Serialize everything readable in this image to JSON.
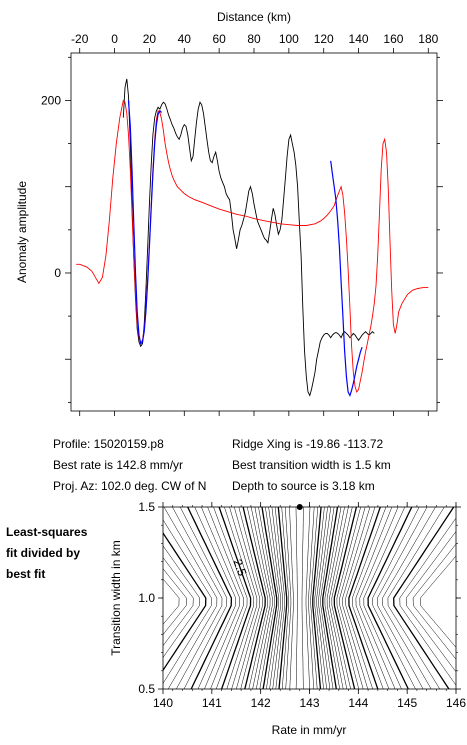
{
  "info": {
    "profile": "Profile: 15020159.p8",
    "best_rate": "Best rate is 142.8 mm/yr",
    "proj_az": "Proj. Az: 102.0 deg. CW of N",
    "ridge_xing": "Ridge Xing is -19.86 -113.72",
    "best_width": "Best transition width is 1.5 km",
    "depth": "Depth to source is   3.18 km"
  },
  "side_label": [
    "Least-squares",
    "fit divided by",
    "best fit"
  ],
  "colors": {
    "observed": "#000000",
    "model": "#ff0000",
    "fit": "#0000ff",
    "contour": "#000000"
  },
  "chart_data": [
    {
      "type": "line",
      "title": "",
      "xlabel": "Distance (km)",
      "ylabel": "Anomaly amplitude",
      "xlim": [
        -25,
        185
      ],
      "ylim": [
        -160,
        255
      ],
      "xticks": [
        -20,
        0,
        20,
        40,
        60,
        80,
        100,
        120,
        140,
        160,
        180
      ],
      "yticks": [
        0,
        200
      ],
      "x_axis_position": "top",
      "grid": false,
      "series": [
        {
          "name": "",
          "style": "observed",
          "x": [
            5,
            6,
            7,
            8,
            9,
            10,
            11,
            12,
            13,
            14,
            15,
            16,
            17,
            18,
            19,
            20,
            21,
            22,
            23,
            24,
            25,
            26,
            27,
            28,
            29,
            30,
            31,
            32,
            33,
            34,
            35,
            36,
            37,
            38,
            39,
            40,
            41,
            42,
            43,
            44,
            45,
            46,
            47,
            48,
            49,
            50,
            51,
            52,
            53,
            54,
            55,
            56,
            57,
            58,
            59,
            60,
            61,
            62,
            63,
            64,
            65,
            66,
            67,
            68,
            69,
            70,
            71,
            72,
            73,
            74,
            75,
            76,
            77,
            78,
            79,
            80,
            81,
            82,
            83,
            84,
            85,
            86,
            87,
            88,
            89,
            90,
            91,
            92,
            93,
            94,
            95,
            96,
            97,
            98,
            99,
            100,
            101,
            102,
            103,
            104,
            105,
            106,
            107,
            108,
            109,
            110,
            111,
            112,
            113,
            114,
            115,
            116,
            117,
            118,
            119,
            120,
            121,
            122,
            123,
            124,
            125,
            126,
            127,
            128,
            129,
            130,
            131,
            132,
            133,
            134,
            135,
            136,
            137,
            138,
            139,
            140,
            141,
            142,
            143,
            144,
            145,
            146,
            147,
            148,
            149
          ],
          "y": [
            180,
            215,
            225,
            205,
            150,
            80,
            20,
            -30,
            -65,
            -80,
            -85,
            -82,
            -60,
            -20,
            30,
            80,
            125,
            160,
            180,
            188,
            192,
            190,
            195,
            198,
            196,
            190,
            183,
            178,
            172,
            168,
            162,
            158,
            155,
            160,
            168,
            172,
            170,
            160,
            145,
            130,
            135,
            155,
            175,
            190,
            198,
            195,
            185,
            170,
            155,
            140,
            130,
            128,
            135,
            140,
            130,
            118,
            110,
            105,
            100,
            92,
            88,
            85,
            70,
            50,
            40,
            28,
            38,
            50,
            55,
            62,
            70,
            82,
            95,
            100,
            92,
            80,
            70,
            60,
            55,
            50,
            45,
            40,
            38,
            35,
            48,
            62,
            75,
            68,
            55,
            45,
            50,
            62,
            85,
            110,
            135,
            155,
            160,
            150,
            140,
            125,
            100,
            60,
            20,
            -40,
            -90,
            -120,
            -138,
            -142,
            -135,
            -125,
            -115,
            -100,
            -90,
            -80,
            -75,
            -72,
            -70,
            -70,
            -72,
            -75,
            -72,
            -70,
            -69,
            -70,
            -72,
            -75,
            -70,
            -68,
            -70,
            -72,
            -75,
            -73,
            -70,
            -72,
            -75,
            -78,
            -75,
            -72,
            -70,
            -68,
            -70,
            -72,
            -70,
            -68,
            -70
          ]
        },
        {
          "name": "",
          "style": "model",
          "x": [
            -22,
            -20,
            -16,
            -13,
            -11,
            -9,
            -7,
            -5,
            -3,
            -1,
            1,
            3,
            5,
            6,
            7,
            8,
            9,
            10,
            11,
            12,
            13,
            14,
            15,
            16,
            17,
            18,
            19,
            20,
            21,
            22,
            23,
            24,
            25,
            26,
            27,
            28,
            29,
            30,
            31,
            32,
            33,
            34,
            36,
            38,
            40,
            43,
            46,
            50,
            55,
            60,
            65,
            70,
            75,
            80,
            85,
            90,
            95,
            100,
            105,
            110,
            115,
            118,
            120,
            122,
            124,
            126,
            128,
            129,
            130,
            131,
            132,
            133,
            134,
            135,
            136,
            137,
            138,
            139,
            140,
            141,
            142,
            143,
            144,
            145,
            146,
            147,
            148,
            149,
            150,
            151,
            152,
            153,
            154,
            155,
            156,
            157,
            158,
            159,
            160,
            161,
            162,
            163,
            165,
            168,
            171,
            174,
            177,
            180
          ],
          "y": [
            10,
            10,
            7,
            2,
            -5,
            -12,
            -5,
            20,
            60,
            110,
            150,
            180,
            200,
            198,
            185,
            160,
            120,
            70,
            20,
            -25,
            -60,
            -75,
            -80,
            -78,
            -65,
            -40,
            -5,
            35,
            80,
            120,
            155,
            178,
            188,
            186,
            178,
            165,
            150,
            138,
            128,
            120,
            113,
            108,
            100,
            96,
            92,
            88,
            85,
            82,
            78,
            74,
            71,
            68,
            66,
            63,
            61,
            59,
            57,
            56,
            55,
            55,
            57,
            60,
            63,
            67,
            72,
            78,
            90,
            95,
            100,
            90,
            70,
            40,
            5,
            -40,
            -85,
            -115,
            -132,
            -138,
            -135,
            -125,
            -115,
            -103,
            -92,
            -82,
            -72,
            -62,
            -50,
            -35,
            -15,
            20,
            70,
            120,
            150,
            155,
            140,
            100,
            40,
            -20,
            -60,
            -70,
            -60,
            -45,
            -35,
            -25,
            -20,
            -18,
            -17,
            -17
          ]
        },
        {
          "name": "",
          "style": "fit",
          "x": [
            8,
            9,
            10,
            11,
            12,
            13,
            14,
            15,
            16,
            17,
            18,
            19,
            20,
            21,
            22,
            23,
            24,
            25,
            26,
            27
          ],
          "y": [
            200,
            170,
            120,
            60,
            0,
            -45,
            -72,
            -82,
            -80,
            -68,
            -45,
            -10,
            30,
            75,
            115,
            150,
            172,
            184,
            188,
            186
          ]
        },
        {
          "name": "",
          "style": "fit",
          "x": [
            124,
            125,
            126,
            127,
            128,
            129,
            130,
            131,
            132,
            133,
            134,
            135,
            136,
            137,
            138,
            139,
            140,
            141,
            142
          ],
          "y": [
            130,
            115,
            100,
            85,
            60,
            30,
            -10,
            -50,
            -90,
            -120,
            -138,
            -142,
            -136,
            -128,
            -118,
            -108,
            -100,
            -92,
            -86
          ]
        }
      ]
    },
    {
      "type": "contour",
      "title": "",
      "xlabel": "Rate in mm/yr",
      "ylabel": "Transition width in km",
      "xlim": [
        140,
        146
      ],
      "ylim": [
        0.5,
        1.5
      ],
      "xticks": [
        140,
        141,
        142,
        143,
        144,
        145,
        146
      ],
      "yticks": [
        0.5,
        1.0,
        1.5
      ],
      "best_fit": {
        "rate": 142.8,
        "width": 1.5
      },
      "contour_label": "2.5",
      "contour_label_rate": 141.5,
      "contour_label_width": 1.16
    }
  ]
}
